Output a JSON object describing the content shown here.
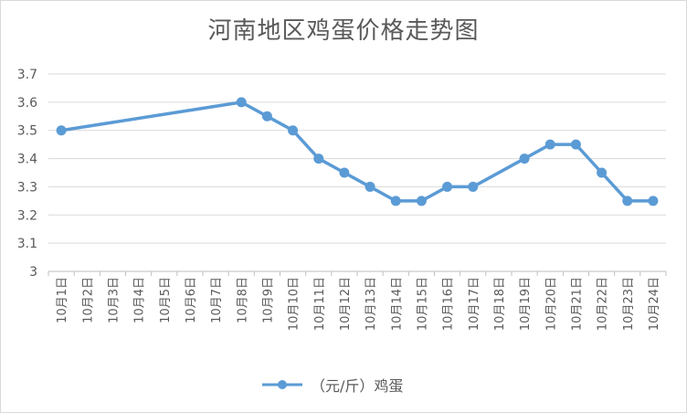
{
  "chart_data": {
    "type": "line",
    "title": "河南地区鸡蛋价格走势图",
    "categories": [
      "10月1日",
      "10月2日",
      "10月3日",
      "10月4日",
      "10月5日",
      "10月6日",
      "10月7日",
      "10月8日",
      "10月9日",
      "10月10日",
      "10月11日",
      "10月12日",
      "10月13日",
      "10月14日",
      "10月15日",
      "10月16日",
      "10月17日",
      "10月18日",
      "10月19日",
      "10月20日",
      "10月21日",
      "10月22日",
      "10月23日",
      "10月24日"
    ],
    "series": [
      {
        "name": "（元/斤）鸡蛋",
        "values": [
          3.5,
          null,
          null,
          null,
          null,
          null,
          null,
          3.6,
          3.55,
          3.5,
          3.4,
          3.35,
          3.3,
          3.25,
          3.25,
          3.3,
          3.3,
          null,
          3.4,
          3.45,
          3.45,
          3.35,
          3.25,
          3.25
        ],
        "color": "#5b9bd5"
      }
    ],
    "yticks": [
      "3",
      "3.1",
      "3.2",
      "3.3",
      "3.4",
      "3.5",
      "3.6",
      "3.7"
    ],
    "ylim": [
      3,
      3.7
    ],
    "grid": true,
    "legend_position": "bottom"
  }
}
